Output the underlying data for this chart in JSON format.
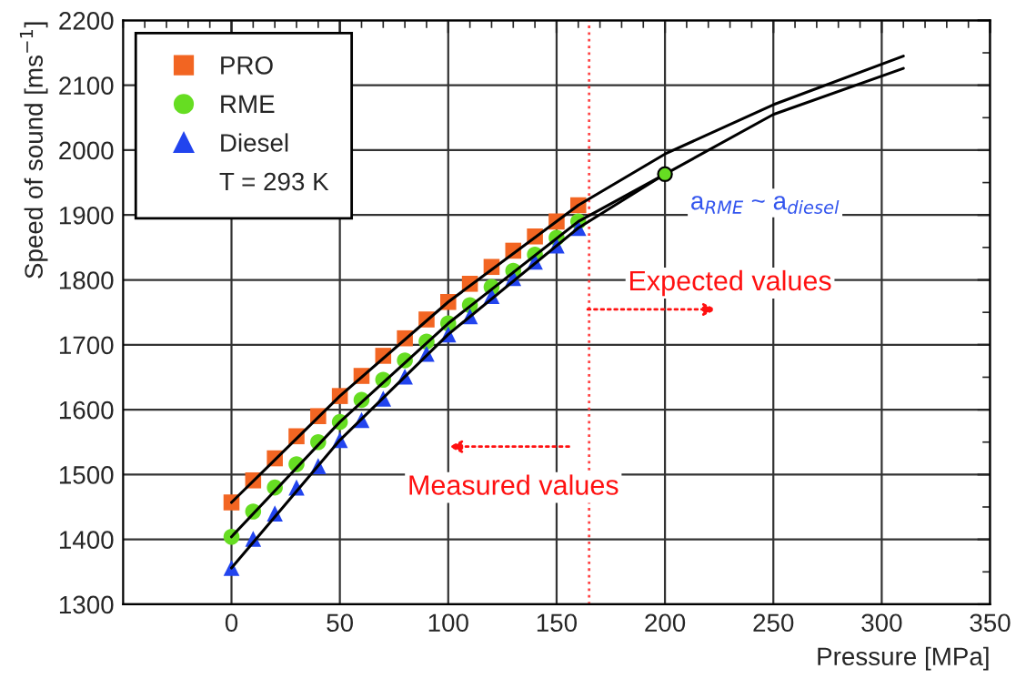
{
  "chart_data": {
    "type": "scatter",
    "xlabel": "Pressure [MPa]",
    "ylabel": "Speed of sound [ms$^{−1}$]",
    "legend_title": "T = 293 K",
    "x": [
      0,
      10,
      20,
      30,
      40,
      50,
      60,
      70,
      80,
      90,
      100,
      110,
      120,
      130,
      140,
      150,
      160
    ],
    "series": [
      {
        "name": "PRO",
        "color": "#f26522",
        "marker": "square",
        "values": [
          1457,
          1491,
          1525,
          1559,
          1590,
          1621,
          1652,
          1683,
          1710,
          1739,
          1766,
          1794,
          1820,
          1845,
          1867,
          1890,
          1915
        ]
      },
      {
        "name": "RME",
        "color": "#66dd22",
        "marker": "circle",
        "values": [
          1404,
          1443,
          1480,
          1516,
          1550,
          1581,
          1615,
          1646,
          1676,
          1705,
          1733,
          1761,
          1789,
          1814,
          1839,
          1865,
          1890
        ]
      },
      {
        "name": "Diesel",
        "color": "#2244ee",
        "marker": "triangle",
        "values": [
          1356,
          1401,
          1440,
          1480,
          1513,
          1553,
          1584,
          1617,
          1651,
          1686,
          1716,
          1744,
          1775,
          1803,
          1828,
          1853,
          1880
        ]
      },
      {
        "type": "line",
        "color": "#000000",
        "x": [
          0,
          50,
          100,
          160,
          200,
          250,
          310
        ],
        "values": [
          1457,
          1621,
          1766,
          1915,
          1994,
          2070,
          2145
        ]
      },
      {
        "type": "line",
        "color": "#000000",
        "x": [
          0,
          50,
          100,
          160,
          200
        ],
        "values": [
          1404,
          1581,
          1733,
          1890,
          1963
        ]
      },
      {
        "type": "line",
        "color": "#000000",
        "x": [
          0,
          50,
          100,
          160,
          200,
          250,
          310
        ],
        "values": [
          1356,
          1553,
          1716,
          1880,
          1963,
          2055,
          2126
        ]
      },
      {
        "color": "#66dd22",
        "marker": "circle",
        "x": [
          200
        ],
        "values": [
          1963
        ]
      }
    ],
    "xlim": [
      -50,
      350
    ],
    "xticks": [
      0,
      50,
      100,
      150,
      200,
      250,
      300,
      350
    ],
    "ylim": [
      1300,
      2200
    ],
    "yticks": [
      1300,
      1400,
      1500,
      1600,
      1700,
      1800,
      1900,
      2000,
      2100,
      2200
    ],
    "grid": true,
    "legend": "top left",
    "ref_lines": [
      {
        "axis": "x",
        "value": 165,
        "color": "#ff4444",
        "line_style": "dotted"
      }
    ],
    "annotations": [
      {
        "text": "a$_{RME}$ ~ a$_{diesel}$",
        "x": 200,
        "y": 1963
      },
      "Expected values",
      "Measured values"
    ]
  }
}
